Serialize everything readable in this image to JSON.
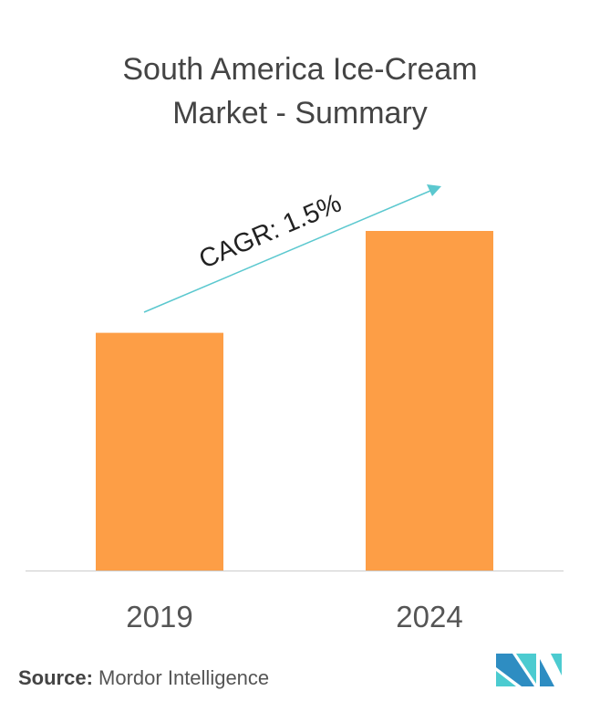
{
  "title_line1": "South America Ice-Cream",
  "title_line2": "Market - Summary",
  "source_label": "Source:",
  "source_value": "Mordor Intelligence",
  "colors": {
    "bar": "#FD9E46",
    "arrow": "#5BC8CF",
    "logo_dark": "#2E8DC2",
    "logo_light": "#4CCBD0"
  },
  "logo_icon": "mordor-intelligence-logo",
  "chart_data": {
    "type": "bar",
    "title": "South America Ice-Cream Market - Summary",
    "categories": [
      "2019",
      "2024"
    ],
    "values": [
      0.7,
      1.0
    ],
    "value_note_unit": "relative (no y-axis printed)",
    "ylim": [
      0,
      1.0
    ],
    "grid": false,
    "annotation": "CAGR: 1.5%"
  }
}
